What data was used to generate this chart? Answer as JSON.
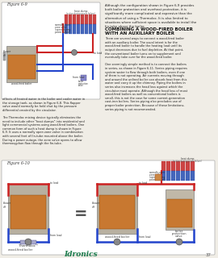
{
  "page_bg": "#f5f5f0",
  "border_color": "#888888",
  "title": "",
  "fig6_9_label": "Figure 6-9",
  "fig6_10_label": "Figure 6-10",
  "section_title_line1": "COMBINING A WOOD-FIRED BOILER",
  "section_title_line2": "WITH AN AUXILIARY BOILER",
  "right_text_intro": "Although the configuration shown in Figure 6-9 provides\nboth boiler protection and overheat protection, it is\nsignificantly more complicated and expensive than the\nalternative of using a Thermoloc. It is also limited to\nsituations where sufficient space is available to install the\nfin-tube above the boiler.",
  "right_body": "There are several ways to connect a wood-fired boiler\nwith an auxiliary boiler. The usual intent is for the\nwood-fired boiler to handle the heating load until its\noutput decreases due to fuel depletion. At that point,\nthe conventional boiler turns on to supplement and\neventually take over for the wood-fired boiler.\n\nOne seemingly simple method is to connect the boilers\nin series, as shown in Figure 6-11. Series piping requires\nsystem water to flow through both boilers, even if one\nof them is not operating. Air currents moving through\nand around the unfired boiler can absorb heat from this\nwater and carry it up the chimney. Piping the boilers in\nseries also increases the head loss against which the\ncirculator must operate. Although the head loss of most\nwood-fired boilers as well as conventional boilers is\nsmall, this is not the case for some current-generation\ncast-iron boilers. Series piping also precludes use of\nproper boiler protection. Because of these limitations,\nseries piping is not recommended.",
  "left_text": "effects of heated water in the boiler and cooler water in\nthe storage tank, as shown in Figure 6-8. This flapper\nvalve would normally be held shut by the pressure\ndifferential created by the circulator.\n\nThe Thermoloc mixing device typically eliminates the\nneed to include other \"heat dumps\" into residential and\nlight commercial systems using wood-fired boilers. One\ncommon form of such a heat dump is shown in Figure\n6-9. It uses a normally open zone valve in combination\nwith several feet of fin-tube mounted above the boiler.\nDuring a power outage, the zone valve opens to allow\nthermosyphon flow through the fin-tube.",
  "logo_color": "#1a7a4a",
  "page_num": "37",
  "diagram_bg": "#d8d0c0",
  "boiler_color": "#c0a060",
  "pipe_red": "#cc2222",
  "pipe_blue": "#2244cc",
  "fin_tube_color_warm": "#cc3333",
  "fin_tube_color_cool": "#4466cc"
}
